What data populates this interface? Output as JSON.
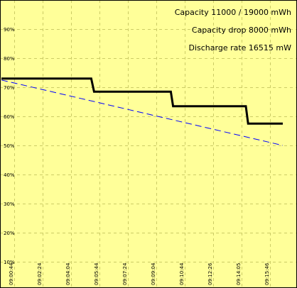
{
  "info": {
    "capacity": "Capacity 11000 / 19000 mWh",
    "capacity_drop": "Capacity drop 8000 mWh",
    "discharge_rate": "Discharge rate 16515 mW"
  },
  "colors": {
    "background": "#ffff99",
    "grid": "#cccc66",
    "frame": "#000000",
    "actual_line": "#000000",
    "trend_line": "#0000ff"
  },
  "chart_data": {
    "type": "line",
    "title": "",
    "xlabel": "",
    "ylabel": "",
    "ylim": [
      0,
      100
    ],
    "y_ticks": [
      "10%",
      "20%",
      "30%",
      "40%",
      "50%",
      "60%",
      "70%",
      "80%",
      "90%"
    ],
    "y_tick_values": [
      10,
      20,
      30,
      40,
      50,
      60,
      70,
      80,
      90
    ],
    "x_ticks": [
      "09:00:44",
      "09:02:24",
      "09:04:04",
      "09:05:44",
      "09:07:24",
      "09:09:04",
      "09:10:44",
      "09:12:26",
      "09:14:05",
      "09:15:46"
    ],
    "x_tick_seconds": [
      44,
      144,
      244,
      344,
      444,
      544,
      644,
      746,
      845,
      946
    ],
    "grid": true,
    "series": [
      {
        "style": "solid-thick",
        "points_seconds": [
          [
            0,
            73
          ],
          [
            316,
            73
          ],
          [
            326,
            68.5
          ],
          [
            596,
            68.5
          ],
          [
            604,
            63.5
          ],
          [
            860,
            63.5
          ],
          [
            868,
            57.5
          ],
          [
            990,
            57.5
          ]
        ]
      },
      {
        "style": "dashed",
        "points_seconds": [
          [
            0,
            72.5
          ],
          [
            990,
            50
          ]
        ]
      }
    ]
  }
}
